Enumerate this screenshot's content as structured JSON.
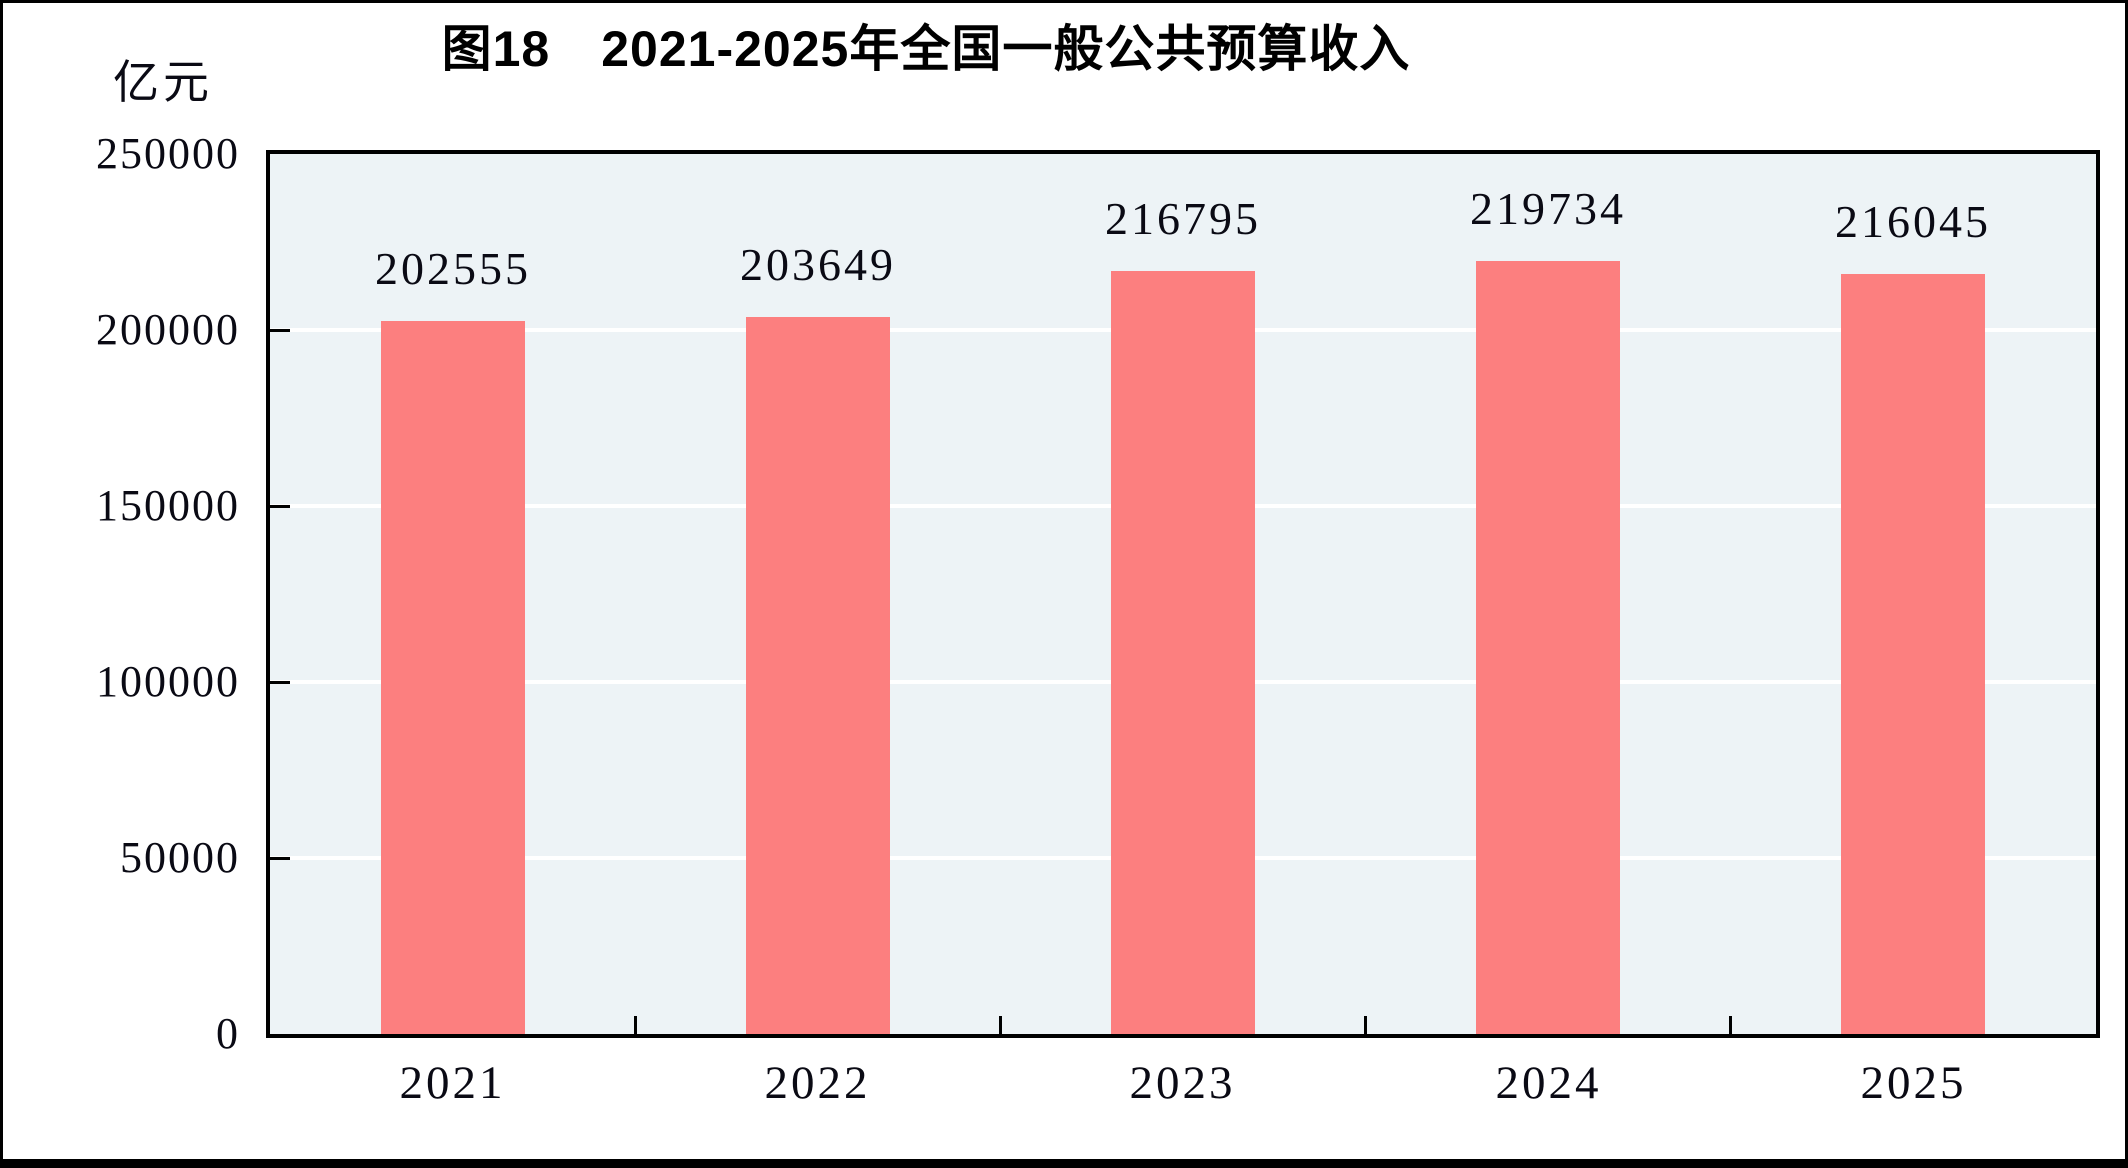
{
  "title": "图18　2021-2025年全国一般公共预算收入",
  "unit_label": "亿元",
  "chart_data": {
    "type": "bar",
    "title": "图18　2021-2025年全国一般公共预算收入",
    "ylabel_unit": "亿元",
    "categories": [
      "2021",
      "2022",
      "2023",
      "2024",
      "2025"
    ],
    "values": [
      202555,
      203649,
      216795,
      219734,
      216045
    ],
    "data_labels_shown": true,
    "ylim": [
      0,
      250000
    ],
    "yticks": [
      0,
      50000,
      100000,
      150000,
      200000,
      250000
    ],
    "legend": "none",
    "grid": "horizontal white lines on light blue plot background",
    "bar_color": "#FC7F7F",
    "plot_background_color": "#EDF3F6",
    "grid_color": "#FFFFFF",
    "axis_color": "#000000",
    "text_color": "#0a0a14",
    "page_frame_color": "#000000"
  }
}
